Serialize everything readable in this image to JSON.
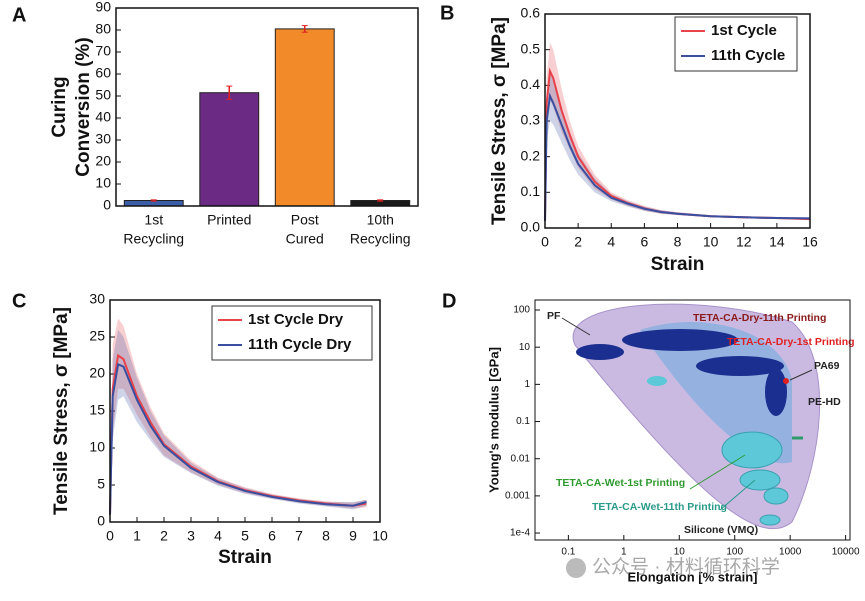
{
  "chart_data": [
    {
      "type": "bar",
      "label": "A",
      "ylabel": [
        "Curing",
        "Conversion (%)"
      ],
      "categories": [
        [
          "1st",
          "Recycling"
        ],
        [
          "Printed"
        ],
        [
          "Post",
          "Cured"
        ],
        [
          "10th",
          "Recycling"
        ]
      ],
      "values": [
        2.5,
        51.5,
        80.5,
        2.5
      ],
      "errors": [
        0.3,
        3,
        1.5,
        0.3
      ],
      "colors": [
        "#3a5fa8",
        "#6b2a83",
        "#f28a2a",
        "#1a1a1a"
      ],
      "error_color": "#e02020",
      "ylim": [
        0,
        90
      ],
      "yticks": [
        0,
        10,
        20,
        30,
        40,
        50,
        60,
        70,
        80,
        90
      ]
    },
    {
      "type": "line",
      "label": "B",
      "ylabel": "Tensile Stress, σ [MPa]",
      "xlabel": "Strain",
      "x": [
        0,
        0.1,
        0.3,
        0.5,
        1,
        1.5,
        2,
        3,
        4,
        5,
        6,
        7,
        8,
        10,
        12,
        14,
        16
      ],
      "series": [
        {
          "name": "1st Cycle",
          "color": "#e8424a",
          "values": [
            0.02,
            0.35,
            0.44,
            0.42,
            0.33,
            0.26,
            0.2,
            0.13,
            0.09,
            0.07,
            0.055,
            0.045,
            0.04,
            0.033,
            0.03,
            0.028,
            0.025
          ],
          "band_upper": [
            0.02,
            0.42,
            0.52,
            0.5,
            0.39,
            0.3,
            0.23,
            0.15,
            0.1,
            0.078,
            0.062,
            0.05,
            0.044,
            0.036,
            0.033,
            0.031,
            0.028
          ],
          "band_lower": [
            0.02,
            0.28,
            0.36,
            0.34,
            0.27,
            0.22,
            0.17,
            0.11,
            0.08,
            0.062,
            0.048,
            0.04,
            0.036,
            0.03,
            0.027,
            0.025,
            0.022
          ]
        },
        {
          "name": "11th Cycle",
          "color": "#3a4fa0",
          "values": [
            0.02,
            0.3,
            0.37,
            0.35,
            0.29,
            0.23,
            0.18,
            0.12,
            0.085,
            0.068,
            0.054,
            0.045,
            0.04,
            0.033,
            0.03,
            0.028,
            0.027
          ],
          "band_upper": [
            0.02,
            0.36,
            0.44,
            0.42,
            0.34,
            0.27,
            0.21,
            0.14,
            0.095,
            0.075,
            0.06,
            0.05,
            0.044,
            0.036,
            0.033,
            0.031,
            0.03
          ],
          "band_lower": [
            0.02,
            0.24,
            0.3,
            0.29,
            0.24,
            0.19,
            0.15,
            0.1,
            0.075,
            0.06,
            0.048,
            0.04,
            0.036,
            0.03,
            0.027,
            0.025,
            0.024
          ]
        }
      ],
      "xlim": [
        0,
        16
      ],
      "xticks": [
        0,
        2,
        4,
        6,
        8,
        10,
        12,
        14,
        16
      ],
      "ylim": [
        0,
        0.6
      ],
      "yticks": [
        {
          "value": 0,
          "label": "0.0"
        },
        0.1,
        0.2,
        0.3,
        0.4,
        0.5,
        0.6
      ]
    },
    {
      "type": "line",
      "label": "C",
      "ylabel": "Tensile Stress, σ [MPa]",
      "xlabel": "Strain",
      "x": [
        0,
        0.1,
        0.3,
        0.5,
        1,
        1.5,
        2,
        3,
        4,
        5,
        6,
        7,
        8,
        9,
        9.5
      ],
      "series": [
        {
          "name": "1st Cycle Dry",
          "color": "#e8424a",
          "values": [
            1,
            18,
            22.5,
            22,
            17,
            13.5,
            10.5,
            7.5,
            5.5,
            4.3,
            3.5,
            2.9,
            2.5,
            2.2,
            2.5
          ],
          "band_upper": [
            1,
            24,
            27.5,
            26.5,
            20,
            15.5,
            12,
            8.3,
            6,
            4.7,
            3.8,
            3.2,
            2.8,
            2.6,
            3
          ],
          "band_lower": [
            1,
            12,
            18,
            18,
            14.5,
            11.5,
            9,
            6.7,
            5,
            3.9,
            3.2,
            2.6,
            2.2,
            1.8,
            2
          ]
        },
        {
          "name": "11th Cycle Dry",
          "color": "#3a4fa0",
          "values": [
            1,
            17,
            21.3,
            21,
            16.5,
            13,
            10.3,
            7.3,
            5.4,
            4.2,
            3.4,
            2.8,
            2.4,
            2.2,
            2.7
          ],
          "band_upper": [
            1,
            22,
            26,
            25,
            19.5,
            15,
            11.7,
            8,
            5.9,
            4.6,
            3.7,
            3.1,
            2.7,
            2.7,
            3
          ],
          "band_lower": [
            1,
            11,
            16.5,
            17,
            13.5,
            11,
            8.8,
            6.6,
            4.9,
            3.8,
            3.1,
            2.5,
            2.1,
            1.7,
            2.2
          ]
        }
      ],
      "xlim": [
        0,
        10
      ],
      "xticks": [
        0,
        1,
        2,
        3,
        4,
        5,
        6,
        7,
        8,
        9,
        10
      ],
      "ylim": [
        0,
        30
      ],
      "yticks": [
        0,
        5,
        10,
        15,
        20,
        25,
        30
      ]
    },
    {
      "type": "ashby",
      "label": "D",
      "ylabel": "Young's modulus [GPa]",
      "xlabel": "Elongation [% strain]",
      "xscale": "log",
      "yscale": "log",
      "xlim": [
        0.025,
        12000
      ],
      "xticks": [
        0.1,
        1,
        10,
        100,
        1000,
        10000
      ],
      "ylim": [
        6.5e-05,
        186
      ],
      "yticks": [
        {
          "value": 0.0001,
          "label": "1e-4"
        },
        0.001,
        0.01,
        0.1,
        1,
        10,
        100
      ],
      "annotations": [
        {
          "text": "PF",
          "color": "#222222"
        },
        {
          "text": "TETA-CA-Dry-11th Printing",
          "color": "#8b1a1a"
        },
        {
          "text": "TETA-CA-Dry-1st Printing",
          "color": "#e02020"
        },
        {
          "text": "PA69",
          "color": "#222222"
        },
        {
          "text": "PE-HD",
          "color": "#222222"
        },
        {
          "text": "TETA-CA-Wet-1st Printing",
          "color": "#2e9a2e"
        },
        {
          "text": "TETA-CA-Wet-11th Printing",
          "color": "#2a9a8a"
        },
        {
          "text": "Silicone (VMQ)",
          "color": "#222222"
        }
      ],
      "watermark": "公众号 · 材料循环科学"
    }
  ]
}
